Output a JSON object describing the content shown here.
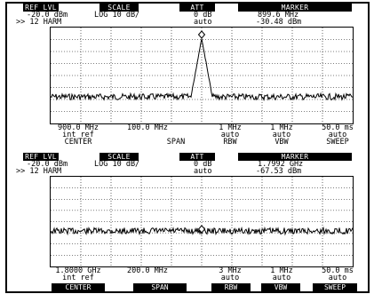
{
  "panel1": {
    "headers": {
      "ref": "REF LVL",
      "scale": "SCALE",
      "att": "ATT",
      "marker": "MARKER"
    },
    "ref_value": "-20.0 dBm",
    "harm": ">> 12 HARM",
    "scale_value": "LOG 10 dB/",
    "att_value": "0 dB",
    "att_mode": "auto",
    "marker_freq": "899.6 MHz",
    "marker_level": "-30.48 dBm",
    "center_value": "900.0 MHz",
    "center_sub": "int ref",
    "center_label": "CENTER",
    "span_value": "100.0 MHz",
    "span_label": "SPAN",
    "rbw_value": "1 MHz",
    "rbw_mode": "auto",
    "rbw_label": "RBW",
    "vbw_value": "1 MHz",
    "vbw_mode": "auto",
    "vbw_label": "VBW",
    "sweep_value": "50.0 ms",
    "sweep_mode": "auto",
    "sweep_label": "SWEEP"
  },
  "panel2": {
    "headers": {
      "ref": "REF LVL",
      "scale": "SCALE",
      "att": "ATT",
      "marker": "MARKER"
    },
    "ref_value": "-20.0 dBm",
    "harm": ">> 12 HARM",
    "scale_value": "LOG 10 dB/",
    "att_value": "0 dB",
    "att_mode": "auto",
    "marker_freq": "1.7992 GHz",
    "marker_level": "-67.53 dBm",
    "center_value": "1.8000 GHz",
    "center_sub": "int ref",
    "center_label": "CENTER",
    "span_value": "200.0 MHz",
    "span_label": "SPAN",
    "rbw_value": "3 MHz",
    "rbw_mode": "auto",
    "rbw_label": "RBW",
    "vbw_value": "1 MHz",
    "vbw_mode": "auto",
    "vbw_label": "VBW",
    "sweep_value": "50.0 ms",
    "sweep_mode": "auto",
    "sweep_label": "SWEEP"
  }
}
